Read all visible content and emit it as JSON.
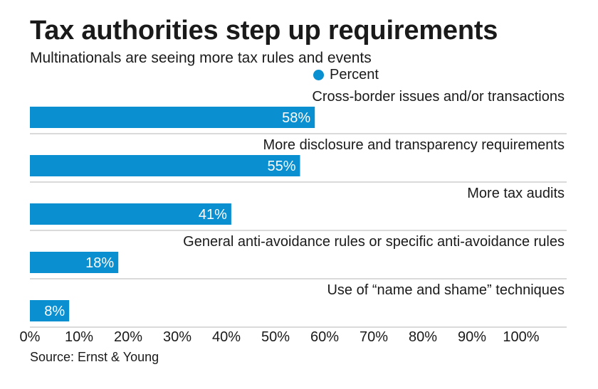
{
  "title": "Tax authorities step up requirements",
  "subtitle": "Multinationals are seeing more tax rules and events",
  "legend": {
    "label": "Percent",
    "color": "#0a8fd0"
  },
  "source": "Source: Ernst & Young",
  "chart_data": {
    "type": "bar",
    "orientation": "horizontal",
    "categories": [
      "Cross-border issues and/or transactions",
      "More disclosure and transparency requirements",
      "More tax audits",
      "General anti-avoidance rules or specific anti-avoidance rules",
      "Use of “name and shame” techniques"
    ],
    "series": [
      {
        "name": "Percent",
        "values": [
          58,
          55,
          41,
          18,
          8
        ]
      }
    ],
    "data_labels": [
      "58%",
      "55%",
      "41%",
      "18%",
      "8%"
    ],
    "xlim": [
      0,
      100
    ],
    "xticks": [
      "0%",
      "10%",
      "20%",
      "30%",
      "40%",
      "50%",
      "60%",
      "70%",
      "80%",
      "90%",
      "100%"
    ],
    "legend_position": "top",
    "bar_color": "#0a8fd0"
  }
}
